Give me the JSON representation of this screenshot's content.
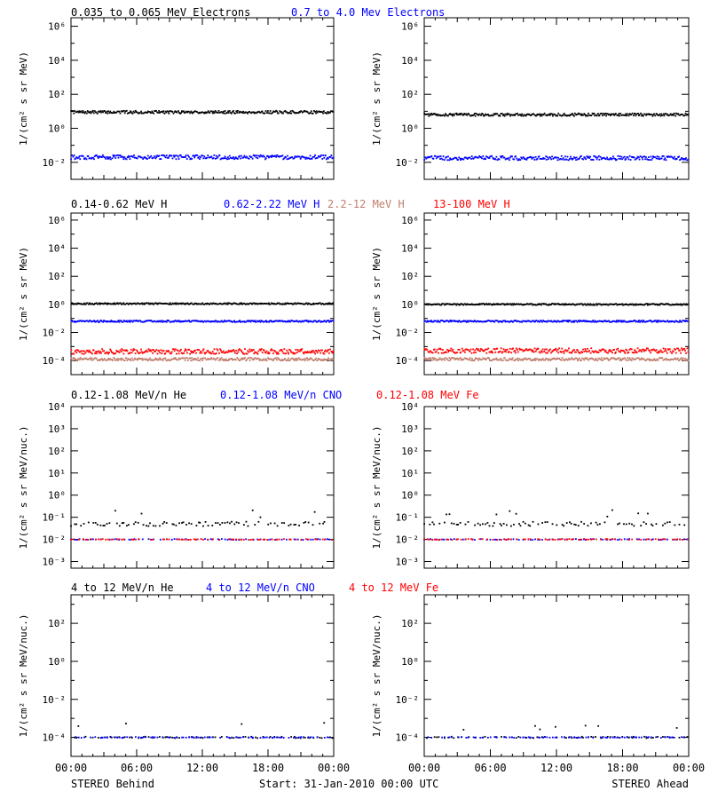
{
  "page": {
    "footer_left": "STEREO Behind",
    "footer_center": "Start: 31-Jan-2010 00:00 UTC",
    "footer_right": "STEREO Ahead"
  },
  "colors": {
    "black": "#000000",
    "blue": "#0000ff",
    "salmon": "#c07e6c",
    "red": "#ff0000"
  },
  "chart_data": [
    {
      "id": "row1",
      "type": "scatter",
      "ylabel": "1/(cm² s sr MeV)",
      "yscale": "log",
      "ylim_exp": [
        -3,
        6.5
      ],
      "tick_exponents": [
        -2,
        0,
        2,
        4,
        6
      ],
      "xlim_hours": [
        0,
        24
      ],
      "x_tick_hours": [
        0,
        6,
        12,
        18,
        24
      ],
      "legend": [
        {
          "label": "0.035 to 0.065 MeV Electrons",
          "color": "#000000"
        },
        {
          "label": "0.7 to 4.0 Mev Electrons",
          "color": "#0000ff"
        }
      ],
      "series": [
        {
          "label_index": 0,
          "color": "#000000",
          "behind_log10_flux": 0.95,
          "ahead_log10_flux": 0.8,
          "spread": 0.08
        },
        {
          "label_index": 1,
          "color": "#0000ff",
          "behind_log10_flux": -1.7,
          "ahead_log10_flux": -1.75,
          "spread": 0.12
        }
      ]
    },
    {
      "id": "row2",
      "type": "scatter",
      "ylabel": "1/(cm² s sr MeV)",
      "yscale": "log",
      "ylim_exp": [
        -5,
        6.5
      ],
      "tick_exponents": [
        -4,
        -2,
        0,
        2,
        4,
        6
      ],
      "xlim_hours": [
        0,
        24
      ],
      "x_tick_hours": [
        0,
        6,
        12,
        18,
        24
      ],
      "legend": [
        {
          "label": "0.14-0.62 MeV H",
          "color": "#000000"
        },
        {
          "label": "0.62-2.22 MeV H",
          "color": "#0000ff"
        },
        {
          "label": "2.2-12 MeV H",
          "color": "#c07e6c"
        },
        {
          "label": "13-100 MeV H",
          "color": "#ff0000"
        }
      ],
      "series": [
        {
          "label_index": 0,
          "color": "#000000",
          "behind_log10_flux": 0.05,
          "ahead_log10_flux": 0.0,
          "spread": 0.05
        },
        {
          "label_index": 1,
          "color": "#0000ff",
          "behind_log10_flux": -1.2,
          "ahead_log10_flux": -1.2,
          "spread": 0.06
        },
        {
          "label_index": 3,
          "color": "#ff0000",
          "behind_log10_flux": -3.35,
          "ahead_log10_flux": -3.3,
          "spread": 0.18
        },
        {
          "label_index": 2,
          "color": "#c07e6c",
          "behind_log10_flux": -3.9,
          "ahead_log10_flux": -3.9,
          "spread": 0.1
        }
      ]
    },
    {
      "id": "row3",
      "type": "scatter",
      "ylabel": "1/(cm² s sr MeV/nuc.)",
      "yscale": "log",
      "ylim_exp": [
        -3.3,
        4
      ],
      "tick_exponents": [
        -3,
        -2,
        -1,
        0,
        1,
        2,
        3,
        4
      ],
      "xlim_hours": [
        0,
        24
      ],
      "x_tick_hours": [
        0,
        6,
        12,
        18,
        24
      ],
      "legend": [
        {
          "label": "0.12-1.08 MeV/n He",
          "color": "#000000"
        },
        {
          "label": "0.12-1.08 MeV/n CNO",
          "color": "#0000ff"
        },
        {
          "label": "0.12-1.08 MeV Fe",
          "color": "#ff0000"
        }
      ],
      "series": [
        {
          "label_index": 0,
          "color": "#000000",
          "behind_log10_flux": -1.3,
          "ahead_log10_flux": -1.3,
          "spread": 0.1
        },
        {
          "label_index": 1,
          "color": "#0000ff",
          "behind_log10_flux": -2.0,
          "ahead_log10_flux": -2.0,
          "spread": 0.02
        },
        {
          "label_index": 2,
          "color": "#ff0000",
          "behind_log10_flux": -2.0,
          "ahead_log10_flux": -2.0,
          "spread": 0.02
        }
      ]
    },
    {
      "id": "row4",
      "type": "scatter",
      "ylabel": "1/(cm² s sr MeV/nuc.)",
      "yscale": "log",
      "ylim_exp": [
        -5,
        3.5
      ],
      "tick_exponents": [
        -4,
        -2,
        0,
        2
      ],
      "xlim_hours": [
        0,
        24
      ],
      "x_tick_hours": [
        0,
        6,
        12,
        18,
        24
      ],
      "x_tick_labels": [
        "00:00",
        "06:00",
        "12:00",
        "18:00",
        "00:00"
      ],
      "legend": [
        {
          "label": "4 to 12 MeV/n He",
          "color": "#000000"
        },
        {
          "label": "4 to 12 MeV/n CNO",
          "color": "#0000ff"
        },
        {
          "label": "4 to 12 MeV Fe",
          "color": "#ff0000"
        }
      ],
      "series": [
        {
          "label_index": 0,
          "color": "#000000",
          "behind_log10_flux": -4.0,
          "ahead_log10_flux": -4.0,
          "spread": 0.04
        },
        {
          "label_index": 1,
          "color": "#0000ff",
          "behind_log10_flux": -4.0,
          "ahead_log10_flux": -4.0,
          "spread": 0.02
        }
      ]
    }
  ]
}
